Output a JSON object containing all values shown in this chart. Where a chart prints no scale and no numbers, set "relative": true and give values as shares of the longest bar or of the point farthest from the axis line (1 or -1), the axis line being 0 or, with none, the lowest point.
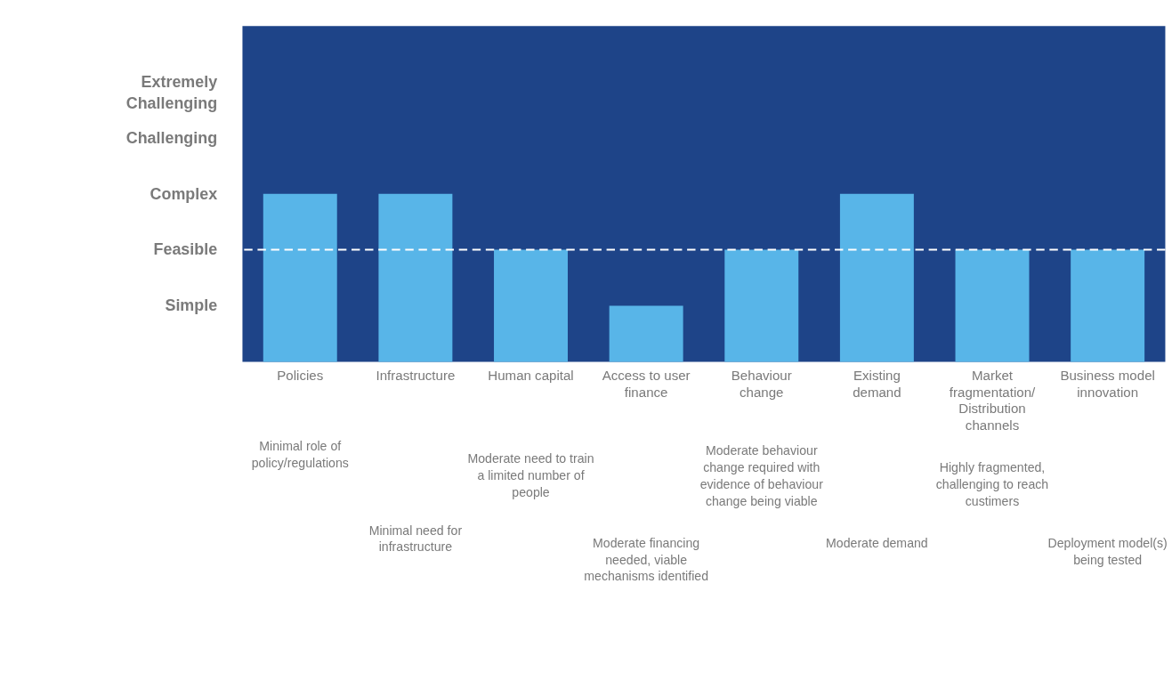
{
  "chart_data": {
    "type": "bar",
    "categories": [
      "Policies",
      "Infrastructure",
      "Human capital",
      "Access to user finance",
      "Behaviour change",
      "Existing demand",
      "Market fragmentation/ Distribution channels",
      "Business model innovation"
    ],
    "values": [
      1,
      1,
      0.667,
      0.333,
      0.667,
      1,
      0.667,
      0.667
    ],
    "relative": true,
    "color": "#58b5e8",
    "ref_lines": [
      {
        "axis": "y",
        "value": 0.667,
        "label": null,
        "color": "#ffffff",
        "line_style": "dashed"
      }
    ],
    "annotations": [
      "Simple",
      "Feasible",
      "Complex",
      "Challenging",
      "Extremely Challenging",
      "Minimal role of policy/regulations",
      "Minimal need for infrastructure",
      "Moderate need to train a limited number of people",
      "Moderate financing needed, viable mechanisms identified",
      "Moderate behaviour change required with evidence of behaviour change being viable",
      "Moderate demand",
      "Highly fragmented, challenging to reach custimers",
      "Deployment model(s) being tested"
    ]
  }
}
